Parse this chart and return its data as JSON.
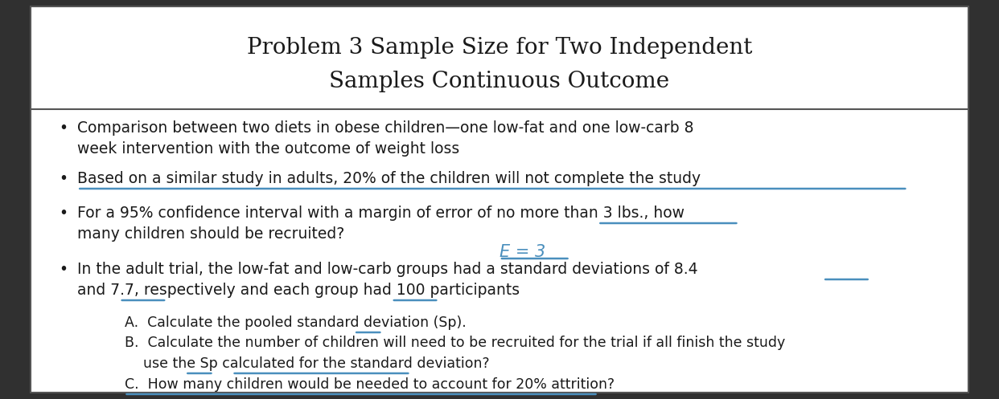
{
  "title_line1": "Problem 3 Sample Size for Two Independent",
  "title_line2": "Samples Continuous Outcome",
  "bullet1_line1": "Comparison between two diets in obese children—one low-fat and one low-carb 8",
  "bullet1_line2": "week intervention with the outcome of weight loss",
  "bullet2": "Based on a similar study in adults, 20% of the children will not complete the study",
  "bullet3_line1": "For a 95% confidence interval with a margin of error of no more than 3 lbs., how",
  "bullet3_line2": "many children should be recruited?",
  "e3_annotation": "E = 3",
  "bullet4_line1": "In the adult trial, the low-fat and low-carb groups had a standard deviations of 8.4",
  "bullet4_line2": "and 7.7, respectively and each group had 100 participants",
  "sub_a": "A.  Calculate the pooled standard deviation (Sp).",
  "sub_b_line1": "B.  Calculate the number of children will need to be recruited for the trial if all finish the study",
  "sub_b_line2": "use the Sp calculated for the standard deviation?",
  "sub_c": "C.  How many children would be needed to account for 20% attrition?",
  "bg_color": "#ffffff",
  "text_color": "#1a1a1a",
  "border_color": "#555555",
  "underline_color": "#4a8fbd",
  "annotation_color": "#4a8fbd",
  "outer_bg": "#303030",
  "fig_width": 12.42,
  "fig_height": 4.97,
  "dpi": 100
}
